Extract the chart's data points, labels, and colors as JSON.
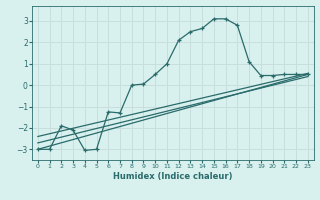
{
  "xlabel": "Humidex (Indice chaleur)",
  "ylabel": "",
  "xlim": [
    -0.5,
    23.5
  ],
  "ylim": [
    -3.5,
    3.7
  ],
  "xticks": [
    0,
    1,
    2,
    3,
    4,
    5,
    6,
    7,
    8,
    9,
    10,
    11,
    12,
    13,
    14,
    15,
    16,
    17,
    18,
    19,
    20,
    21,
    22,
    23
  ],
  "yticks": [
    -3,
    -2,
    -1,
    0,
    1,
    2,
    3
  ],
  "bg_color": "#d8f0ee",
  "grid_color": "#c8dedd",
  "line_color": "#2a6b6b",
  "curve1_x": [
    0,
    1,
    2,
    3,
    4,
    5,
    6,
    7,
    8,
    9,
    10,
    11,
    12,
    13,
    14,
    15,
    16,
    17,
    18,
    19,
    20,
    21,
    22,
    23
  ],
  "curve1_y": [
    -3.0,
    -3.0,
    -1.9,
    -2.1,
    -3.05,
    -3.0,
    -1.25,
    -1.3,
    0.0,
    0.05,
    0.5,
    1.0,
    2.1,
    2.5,
    2.65,
    3.1,
    3.1,
    2.8,
    1.1,
    0.45,
    0.45,
    0.5,
    0.5,
    0.5
  ],
  "curve2_x": [
    0,
    23
  ],
  "curve2_y": [
    -3.0,
    0.5
  ],
  "curve3_x": [
    0,
    23
  ],
  "curve3_y": [
    -2.7,
    0.4
  ],
  "curve4_x": [
    0,
    23
  ],
  "curve4_y": [
    -2.4,
    0.55
  ]
}
